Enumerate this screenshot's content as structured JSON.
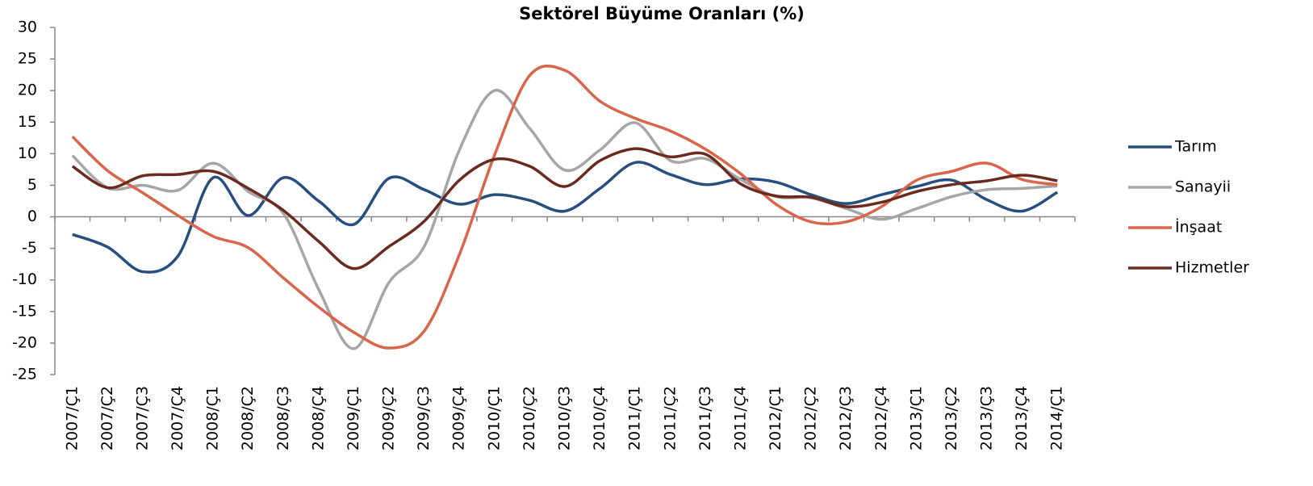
{
  "chart_data": {
    "type": "line",
    "title": "Sektörel Büyüme Oranları (%)",
    "categories": [
      "2007/Ç1",
      "2007/Ç2",
      "2007/Ç3",
      "2007/Ç4",
      "2008/Ç1",
      "2008/Ç2",
      "2008/Ç3",
      "2008/Ç4",
      "2009/Ç1",
      "2009/Ç2",
      "2009/Ç3",
      "2009/Ç4",
      "2010/Ç1",
      "2010/Ç2",
      "2010/Ç3",
      "2010/Ç4",
      "2011/Ç1",
      "2011/Ç2",
      "2011/Ç3",
      "2011/Ç4",
      "2012/Ç1",
      "2012/Ç2",
      "2012/Ç3",
      "2012/Ç4",
      "2013/Ç1",
      "2013/Ç2",
      "2013/Ç3",
      "2013/Ç4",
      "2014/Ç1"
    ],
    "series": [
      {
        "name": "Tarım",
        "color": "#264f7f",
        "values": [
          -2.8,
          -4.8,
          -8.7,
          -6.2,
          6.2,
          0.2,
          6.2,
          2.5,
          -1.2,
          6.1,
          4.3,
          2.0,
          3.5,
          2.6,
          0.9,
          4.5,
          8.6,
          6.7,
          5.1,
          6.0,
          5.5,
          3.5,
          2.1,
          3.5,
          4.8,
          5.8,
          2.7,
          0.9,
          3.9
        ]
      },
      {
        "name": "Sanayii",
        "color": "#a6a6a6",
        "values": [
          9.7,
          4.6,
          5.0,
          4.2,
          8.5,
          4.0,
          0.5,
          -11.5,
          -20.9,
          -10.4,
          -4.7,
          10.6,
          20.0,
          14.0,
          7.4,
          10.6,
          14.9,
          8.9,
          9.2,
          5.9,
          3.2,
          3.0,
          1.3,
          -0.4,
          1.3,
          3.2,
          4.3,
          4.5,
          4.9
        ]
      },
      {
        "name": "İnşaat",
        "color": "#d9654a",
        "values": [
          12.7,
          7.3,
          3.8,
          0.2,
          -3.1,
          -4.9,
          -9.7,
          -14.3,
          -18.3,
          -20.8,
          -18.1,
          -6.0,
          9.8,
          22.4,
          23.2,
          18.3,
          15.6,
          13.6,
          10.7,
          6.8,
          2.0,
          -0.8,
          -0.8,
          1.6,
          5.8,
          7.2,
          8.5,
          5.9,
          5.1
        ]
      },
      {
        "name": "Hizmetler",
        "color": "#6b2a1f",
        "values": [
          8.0,
          4.6,
          6.5,
          6.7,
          7.2,
          4.5,
          1.0,
          -3.9,
          -8.2,
          -4.7,
          -0.7,
          5.8,
          9.1,
          8.0,
          4.8,
          8.9,
          10.8,
          9.5,
          9.9,
          5.2,
          3.3,
          3.1,
          1.6,
          2.3,
          4.0,
          5.1,
          5.7,
          6.6,
          5.7
        ]
      }
    ],
    "ylim": [
      -25,
      30
    ],
    "yticks": [
      -25,
      -20,
      -15,
      -10,
      -5,
      0,
      5,
      10,
      15,
      20,
      25,
      30
    ],
    "grid": false,
    "legend": "right"
  }
}
